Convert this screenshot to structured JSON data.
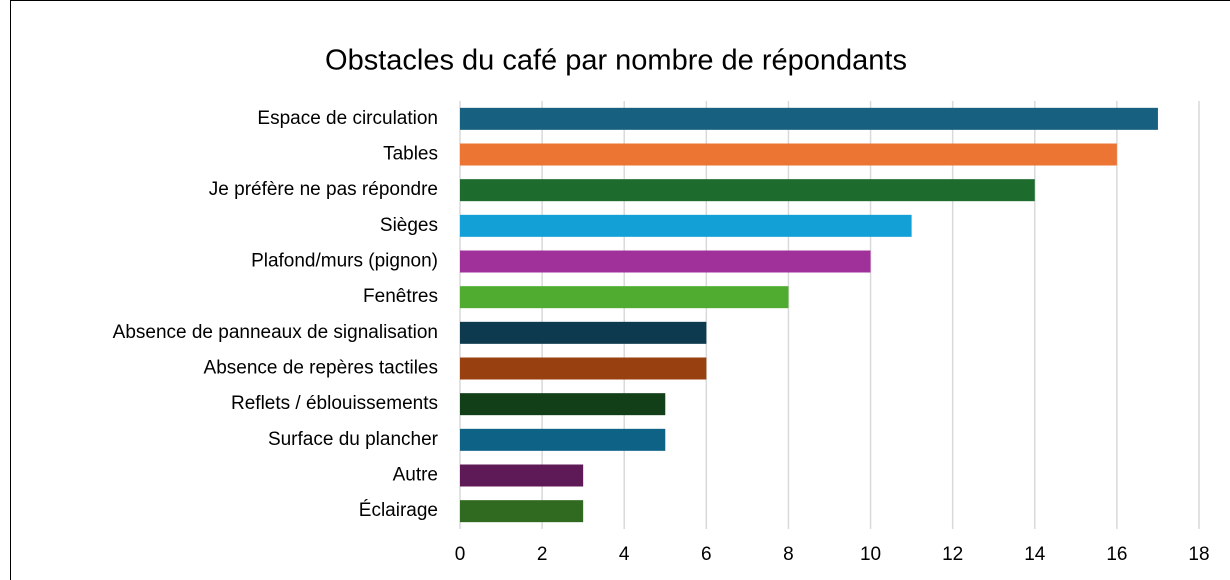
{
  "chart_data": {
    "type": "bar",
    "orientation": "horizontal",
    "title": "Obstacles du café par nombre de répondants",
    "categories": [
      "Espace de circulation",
      "Tables",
      "Je préfère ne pas répondre",
      "Sièges",
      "Plafond/murs (pignon)",
      "Fenêtres",
      "Absence de panneaux de signalisation",
      "Absence de repères tactiles",
      "Reflets / éblouissements",
      "Surface du plancher",
      "Autre",
      "Éclairage"
    ],
    "values": [
      17,
      16,
      14,
      11,
      10,
      8,
      6,
      6,
      5,
      5,
      3,
      3
    ],
    "colors": [
      "#17607f",
      "#ec7533",
      "#1e6b2e",
      "#12a0d7",
      "#a0309a",
      "#4fac31",
      "#0e3a4f",
      "#98400f",
      "#123f17",
      "#0e6285",
      "#5e1a56",
      "#2f6a20"
    ],
    "xlim": [
      0,
      18
    ],
    "xticks": [
      0,
      2,
      4,
      6,
      8,
      10,
      12,
      14,
      16,
      18
    ],
    "grid": true
  }
}
